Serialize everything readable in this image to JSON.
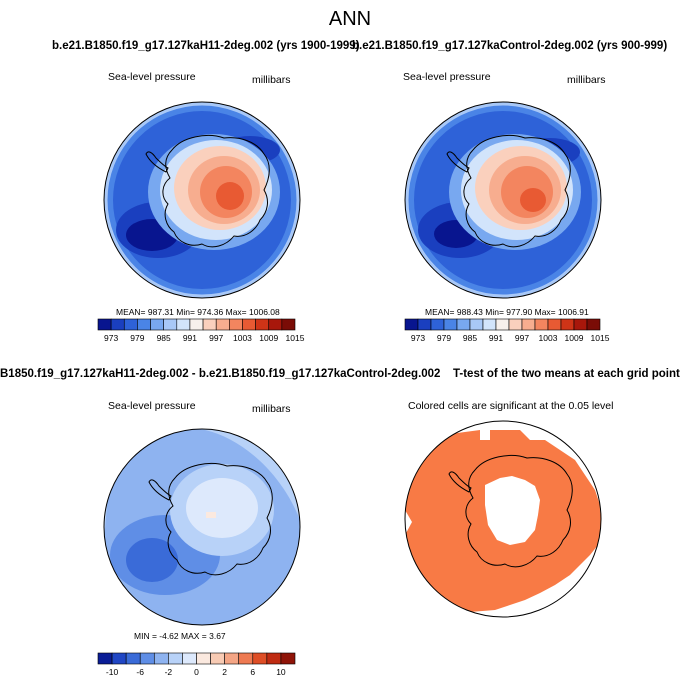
{
  "figure": {
    "title": "ANN"
  },
  "panels": {
    "top_left": {
      "title": "b.e21.B1850.f19_g17.127kaH11-2deg.002 (yrs 1900-1999)",
      "left_label": "Sea-level pressure",
      "right_label": "millibars",
      "stats": "MEAN= 987.31  Min= 974.36  Max= 1006.08",
      "colorbar_labels": [
        "973",
        "979",
        "985",
        "991",
        "997",
        "1003",
        "1009",
        "1015"
      ]
    },
    "top_right": {
      "title": "b.e21.B1850.f19_g17.127kaControl-2deg.002 (yrs 900-999)",
      "left_label": "Sea-level pressure",
      "right_label": "millibars",
      "stats": "MEAN= 988.43  Min= 977.90  Max= 1006.91",
      "colorbar_labels": [
        "973",
        "979",
        "985",
        "991",
        "997",
        "1003",
        "1009",
        "1015"
      ]
    },
    "bottom_left": {
      "title": "B1850.f19_g17.127kaH11-2deg.002 - b.e21.B1850.f19_g17.127kaControl-2deg.002",
      "left_label": "Sea-level pressure",
      "right_label": "millibars",
      "stats": "MIN =  -4.62 MAX =   3.67",
      "colorbar_labels": [
        "-10",
        "-6",
        "-2",
        "0",
        "2",
        "6",
        "10"
      ]
    },
    "bottom_right": {
      "title": "T-test of the two means at each grid point",
      "subtitle": "Colored cells are significant at the 0.05 level"
    }
  },
  "colors": {
    "abs_scale": [
      "#08158f",
      "#1a3fbf",
      "#2e62d8",
      "#4a84e6",
      "#78a8f0",
      "#a8c8f7",
      "#d2e4fb",
      "#f7f0ec",
      "#fad0bd",
      "#f7ad8f",
      "#f3855f",
      "#e85a33",
      "#cf3417",
      "#a8170b",
      "#7a0c06"
    ],
    "diff_scale": [
      "#0a1d96",
      "#2046c4",
      "#3a6bd8",
      "#5f8ee6",
      "#8eb3f0",
      "#b8d2f8",
      "#dde9fc",
      "#fbe9df",
      "#f8cbb4",
      "#f4a585",
      "#ee7a52",
      "#de4e26",
      "#bf2b12",
      "#8f1408"
    ],
    "signif": "#f87a45",
    "coast": "#000000"
  }
}
